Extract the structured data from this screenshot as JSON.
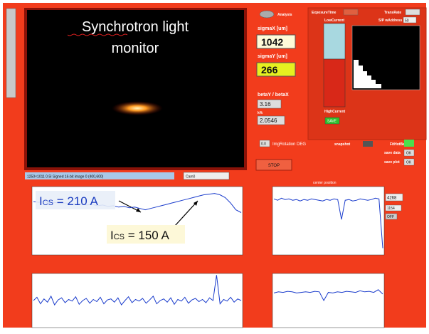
{
  "image_panel": {
    "title_line1": "Synchrotron light",
    "title_line2": "monitor",
    "info": "1250×1011 0.5I Signed 16-bit image 0   (400,600)",
    "camera": "Cam0"
  },
  "analysis": {
    "button": "Analysis"
  },
  "sigma_x": {
    "label": "sigmaX [um]",
    "value": "1042"
  },
  "sigma_y": {
    "label": "sigmaY [um]",
    "value": "266"
  },
  "beta_ratio": {
    "label": "betaY / betaX",
    "value": "3.16"
  },
  "k_percent": {
    "label": "k%",
    "value": "2.0546"
  },
  "settings": {
    "exposure": "ExposureTime",
    "trans_rate": "TransRate",
    "address_label": "S/P wAddress",
    "address_value": "50",
    "low_current": "LowCurrent",
    "high_current": "HighCurrent",
    "save": "SAVE"
  },
  "controls": {
    "rotation_value": "0.0",
    "rotation_label": "ImgRotation DEG",
    "snapshot": "snapshot",
    "fit": "FitHotBeam",
    "save_data": "save data",
    "save_plot": "save plot",
    "ok": "OK",
    "stop": "STOP"
  },
  "center": {
    "title": "center position",
    "value1": "4268",
    "value2": "1154",
    "switch": "OFF"
  },
  "annotations": [
    {
      "main": "I",
      "sub": "CS",
      "rest": " = 210 A"
    },
    {
      "main": "I",
      "sub": "CS",
      "rest": " = 150 A"
    }
  ],
  "plots": [
    {
      "ylim": [
        0,
        100
      ],
      "values": [
        78,
        77,
        78,
        76,
        77,
        75,
        76,
        75,
        74,
        75,
        73,
        74,
        72,
        73,
        71,
        72,
        70,
        71,
        69,
        70,
        68,
        66,
        68,
        70,
        72,
        74,
        76,
        78,
        80,
        82,
        84,
        86,
        88,
        89,
        90,
        88,
        84,
        76,
        66,
        62
      ]
    },
    {
      "ylim": [
        0,
        100
      ],
      "values": [
        50,
        56,
        44,
        53,
        47,
        58,
        42,
        51,
        55,
        46,
        52,
        49,
        57,
        43,
        50,
        54,
        45,
        52,
        48,
        56,
        44,
        51,
        53,
        47,
        55,
        42,
        50,
        57,
        46,
        52,
        49,
        54,
        45,
        51,
        58,
        44,
        50,
        53,
        47,
        55,
        43,
        52,
        49,
        56,
        45,
        51,
        54,
        48,
        52,
        46,
        55,
        50,
        97,
        44,
        52,
        49,
        56,
        47,
        53,
        50
      ]
    },
    {
      "ylim": [
        0,
        100
      ],
      "values": [
        82,
        80,
        83,
        81,
        82,
        80,
        81,
        79,
        81,
        80,
        82,
        81,
        80,
        79,
        81,
        80,
        82,
        81,
        52,
        80,
        81,
        79,
        80,
        82,
        81,
        80,
        81,
        83,
        82,
        10
      ]
    },
    {
      "ylim": [
        0,
        100
      ],
      "values": [
        64,
        66,
        65,
        67,
        66,
        64,
        65,
        66,
        65,
        67,
        66,
        50,
        65,
        64,
        66,
        65,
        67,
        66,
        65,
        68,
        66,
        67,
        65,
        70,
        62
      ]
    }
  ]
}
